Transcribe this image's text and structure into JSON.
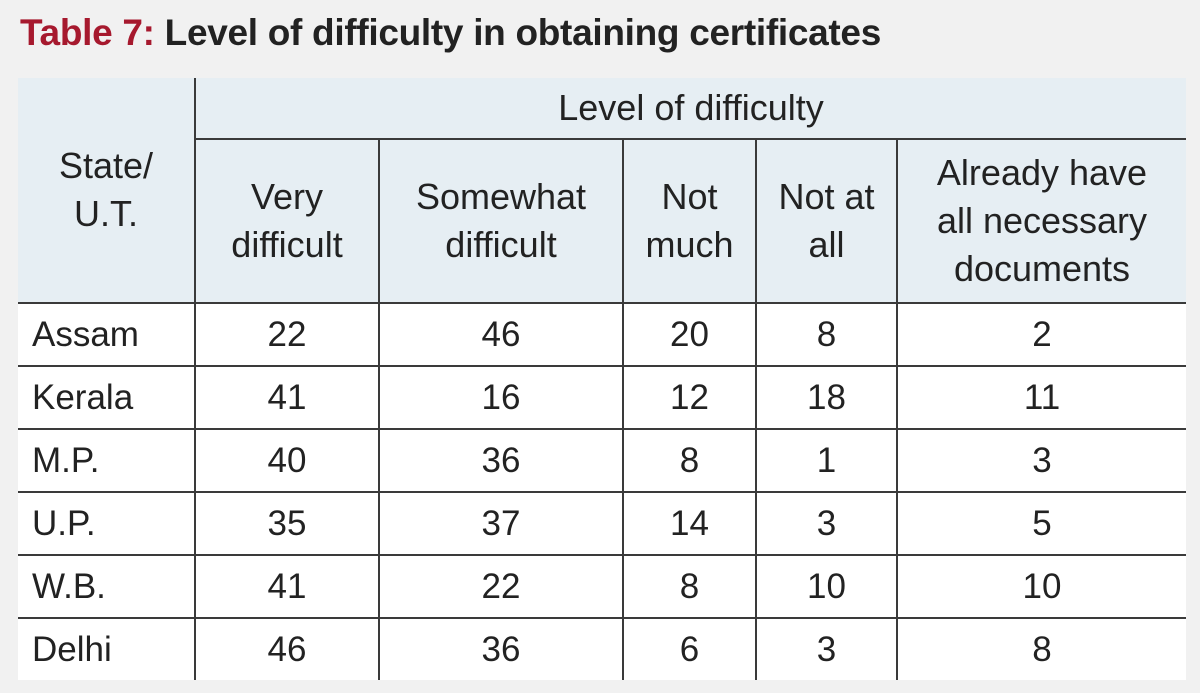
{
  "title": {
    "label": "Table 7:",
    "text": "Level of difficulty in obtaining certificates"
  },
  "chart_data": {
    "type": "table",
    "row_header_label": [
      "State/",
      "U.T."
    ],
    "group_header": "Level of difficulty",
    "columns": [
      [
        "Very",
        "difficult"
      ],
      [
        "Somewhat",
        "difficult"
      ],
      [
        "Not",
        "much"
      ],
      [
        "Not at",
        "all"
      ],
      [
        "Already have",
        "all necessary",
        "documents"
      ]
    ],
    "rows": [
      {
        "state": "Assam",
        "values": [
          22,
          46,
          20,
          8,
          2
        ]
      },
      {
        "state": "Kerala",
        "values": [
          41,
          16,
          12,
          18,
          11
        ]
      },
      {
        "state": "M.P.",
        "values": [
          40,
          36,
          8,
          1,
          3
        ]
      },
      {
        "state": "U.P.",
        "values": [
          35,
          37,
          14,
          3,
          5
        ]
      },
      {
        "state": "W.B.",
        "values": [
          41,
          22,
          8,
          10,
          10
        ]
      },
      {
        "state": "Delhi",
        "values": [
          46,
          36,
          6,
          3,
          8
        ]
      }
    ]
  },
  "colors": {
    "title_label": "#a6192e",
    "header_bg": "#e6eef3",
    "page_bg": "#f1f1f1"
  }
}
